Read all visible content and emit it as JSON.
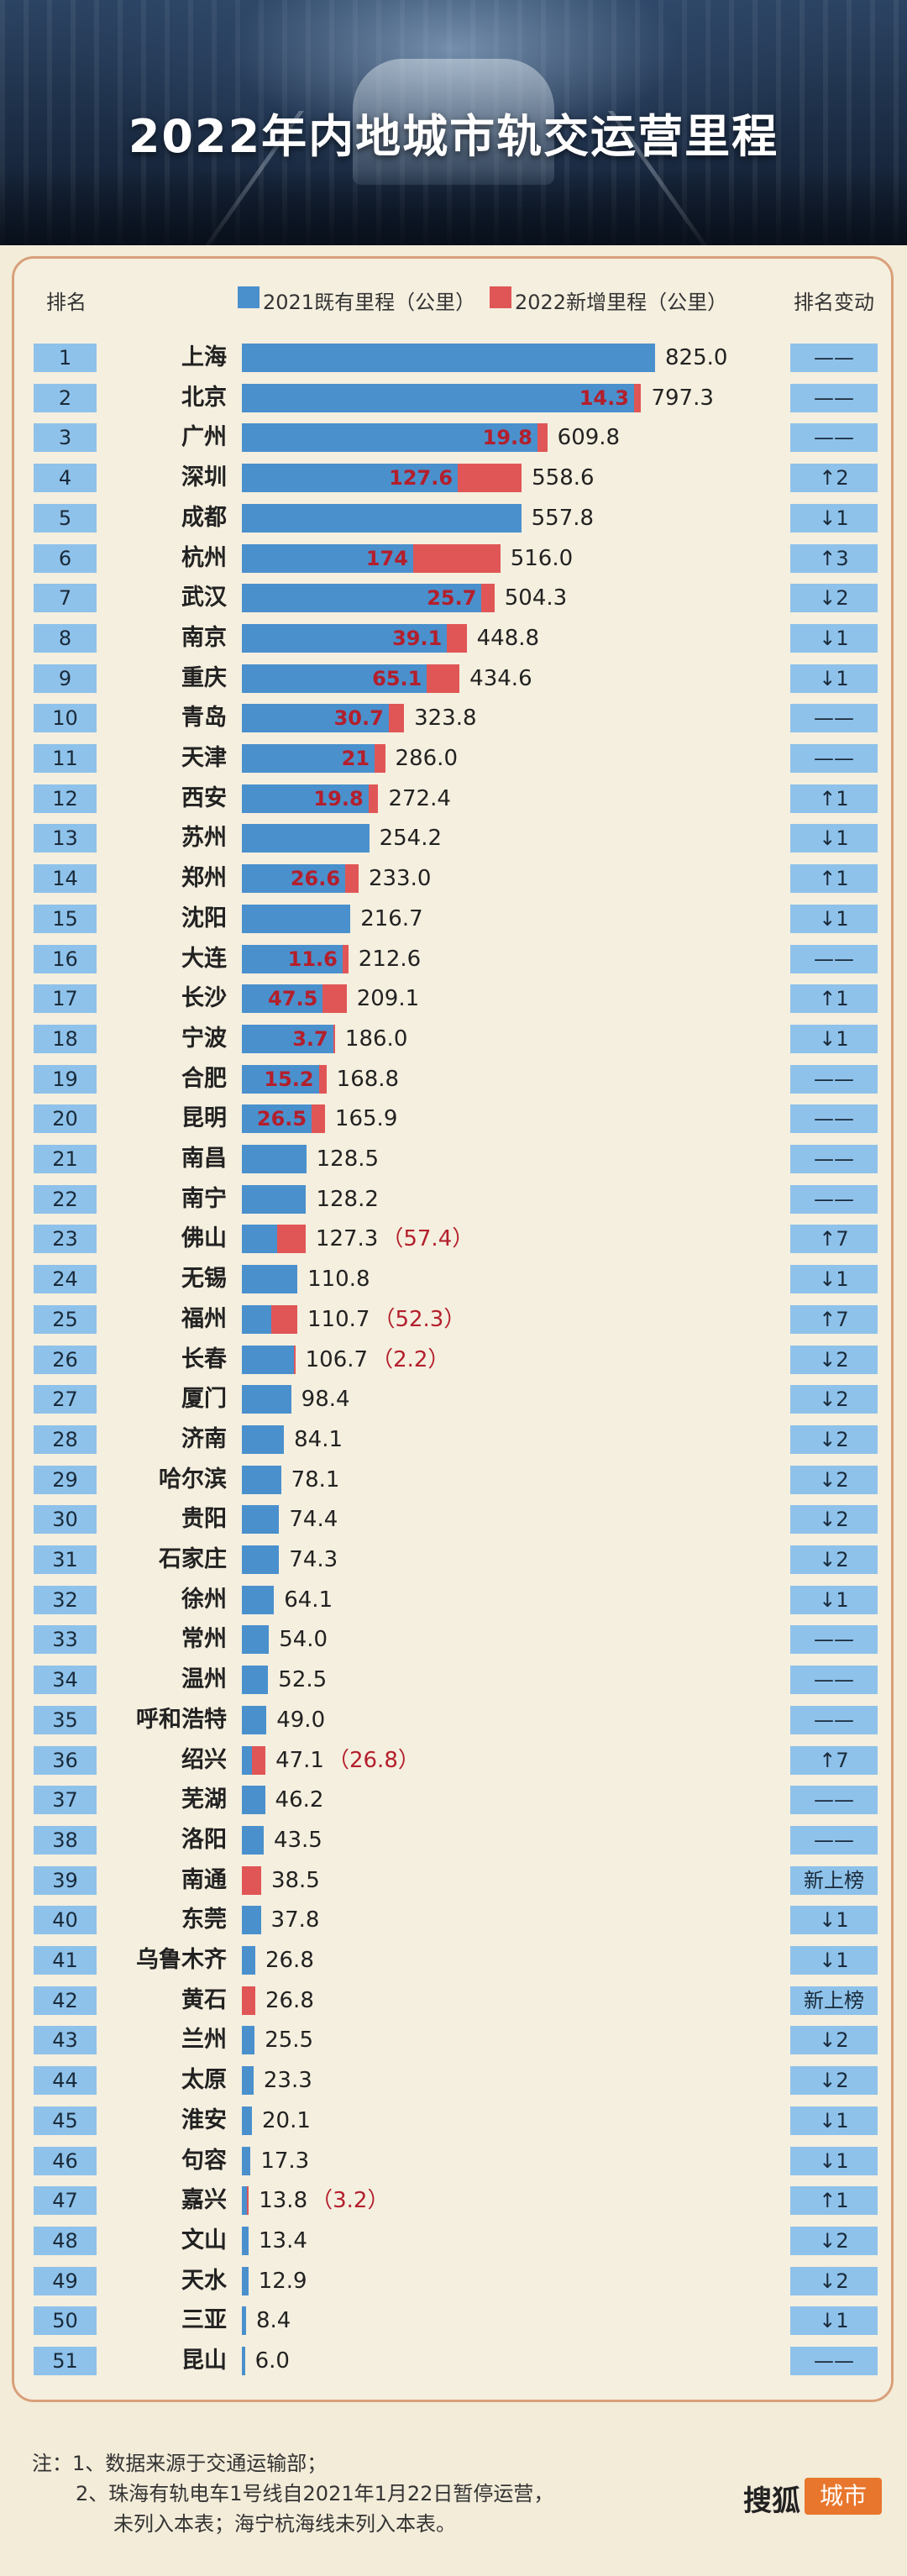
{
  "title": "2022年内地城市轨交运营里程",
  "colors": {
    "base": "#4a90cd",
    "increase": "#e05656",
    "rank_bg": "#8ec2ea",
    "label_red": "#b31f2c"
  },
  "header": {
    "rank_col": "排名",
    "legend_base": "2021既有里程（公里）",
    "legend_increase": "2022新增里程（公里）",
    "change_col": "排名变动"
  },
  "chart_data": {
    "type": "bar",
    "stacked": true,
    "orientation": "horizontal",
    "series": [
      {
        "name": "2021既有里程（公里）",
        "color": "#4a90cd"
      },
      {
        "name": "2022新增里程（公里）",
        "color": "#e05656"
      }
    ],
    "rows": [
      {
        "rank": "1",
        "city": "上海",
        "total": "825.0",
        "increase": null,
        "change": "——"
      },
      {
        "rank": "2",
        "city": "北京",
        "total": "797.3",
        "increase": "14.3",
        "change": "——"
      },
      {
        "rank": "3",
        "city": "广州",
        "total": "609.8",
        "increase": "19.8",
        "change": "——"
      },
      {
        "rank": "4",
        "city": "深圳",
        "total": "558.6",
        "increase": "127.6",
        "change": "↑2"
      },
      {
        "rank": "5",
        "city": "成都",
        "total": "557.8",
        "increase": null,
        "change": "↓1"
      },
      {
        "rank": "6",
        "city": "杭州",
        "total": "516.0",
        "increase": "174",
        "change": "↑3"
      },
      {
        "rank": "7",
        "city": "武汉",
        "total": "504.3",
        "increase": "25.7",
        "change": "↓2"
      },
      {
        "rank": "8",
        "city": "南京",
        "total": "448.8",
        "increase": "39.1",
        "change": "↓1"
      },
      {
        "rank": "9",
        "city": "重庆",
        "total": "434.6",
        "increase": "65.1",
        "change": "↓1"
      },
      {
        "rank": "10",
        "city": "青岛",
        "total": "323.8",
        "increase": "30.7",
        "change": "——"
      },
      {
        "rank": "11",
        "city": "天津",
        "total": "286.0",
        "increase": "21",
        "change": "——"
      },
      {
        "rank": "12",
        "city": "西安",
        "total": "272.4",
        "increase": "19.8",
        "change": "↑1"
      },
      {
        "rank": "13",
        "city": "苏州",
        "total": "254.2",
        "increase": null,
        "change": "↓1"
      },
      {
        "rank": "14",
        "city": "郑州",
        "total": "233.0",
        "increase": "26.6",
        "change": "↑1"
      },
      {
        "rank": "15",
        "city": "沈阳",
        "total": "216.7",
        "increase": null,
        "change": "↓1"
      },
      {
        "rank": "16",
        "city": "大连",
        "total": "212.6",
        "increase": "11.6",
        "change": "——"
      },
      {
        "rank": "17",
        "city": "长沙",
        "total": "209.1",
        "increase": "47.5",
        "change": "↑1"
      },
      {
        "rank": "18",
        "city": "宁波",
        "total": "186.0",
        "increase": "3.7",
        "change": "↓1"
      },
      {
        "rank": "19",
        "city": "合肥",
        "total": "168.8",
        "increase": "15.2",
        "change": "——"
      },
      {
        "rank": "20",
        "city": "昆明",
        "total": "165.9",
        "increase": "26.5",
        "change": "——"
      },
      {
        "rank": "21",
        "city": "南昌",
        "total": "128.5",
        "increase": null,
        "change": "——"
      },
      {
        "rank": "22",
        "city": "南宁",
        "total": "128.2",
        "increase": null,
        "change": "——"
      },
      {
        "rank": "23",
        "city": "佛山",
        "total": "127.3",
        "increase": "57.4",
        "paren": "（57.4）",
        "change": "↑7"
      },
      {
        "rank": "24",
        "city": "无锡",
        "total": "110.8",
        "increase": null,
        "change": "↓1"
      },
      {
        "rank": "25",
        "city": "福州",
        "total": "110.7",
        "increase": "52.3",
        "paren": "（52.3）",
        "change": "↑7"
      },
      {
        "rank": "26",
        "city": "长春",
        "total": "106.7",
        "increase": "2.2",
        "paren": "（2.2）",
        "change": "↓2"
      },
      {
        "rank": "27",
        "city": "厦门",
        "total": "98.4",
        "increase": null,
        "change": "↓2"
      },
      {
        "rank": "28",
        "city": "济南",
        "total": "84.1",
        "increase": null,
        "change": "↓2"
      },
      {
        "rank": "29",
        "city": "哈尔滨",
        "total": "78.1",
        "increase": null,
        "change": "↓2"
      },
      {
        "rank": "30",
        "city": "贵阳",
        "total": "74.4",
        "increase": null,
        "change": "↓2"
      },
      {
        "rank": "31",
        "city": "石家庄",
        "total": "74.3",
        "increase": null,
        "change": "↓2"
      },
      {
        "rank": "32",
        "city": "徐州",
        "total": "64.1",
        "increase": null,
        "change": "↓1"
      },
      {
        "rank": "33",
        "city": "常州",
        "total": "54.0",
        "increase": null,
        "change": "——"
      },
      {
        "rank": "34",
        "city": "温州",
        "total": "52.5",
        "increase": null,
        "change": "——"
      },
      {
        "rank": "35",
        "city": "呼和浩特",
        "total": "49.0",
        "increase": null,
        "change": "——"
      },
      {
        "rank": "36",
        "city": "绍兴",
        "total": "47.1",
        "increase": "26.8",
        "paren": "（26.8）",
        "change": "↑7"
      },
      {
        "rank": "37",
        "city": "芜湖",
        "total": "46.2",
        "increase": null,
        "change": "——"
      },
      {
        "rank": "38",
        "city": "洛阳",
        "total": "43.5",
        "increase": null,
        "change": "——"
      },
      {
        "rank": "39",
        "city": "南通",
        "total": "38.5",
        "increase": "38.5",
        "change": "新上榜"
      },
      {
        "rank": "40",
        "city": "东莞",
        "total": "37.8",
        "increase": null,
        "change": "↓1"
      },
      {
        "rank": "41",
        "city": "乌鲁木齐",
        "total": "26.8",
        "increase": null,
        "change": "↓1"
      },
      {
        "rank": "42",
        "city": "黄石",
        "total": "26.8",
        "increase": "26.8",
        "change": "新上榜"
      },
      {
        "rank": "43",
        "city": "兰州",
        "total": "25.5",
        "increase": null,
        "change": "↓2"
      },
      {
        "rank": "44",
        "city": "太原",
        "total": "23.3",
        "increase": null,
        "change": "↓2"
      },
      {
        "rank": "45",
        "city": "淮安",
        "total": "20.1",
        "increase": null,
        "change": "↓1"
      },
      {
        "rank": "46",
        "city": "句容",
        "total": "17.3",
        "increase": null,
        "change": "↓1"
      },
      {
        "rank": "47",
        "city": "嘉兴",
        "total": "13.8",
        "increase": "3.2",
        "paren": "（3.2）",
        "change": "↑1"
      },
      {
        "rank": "48",
        "city": "文山",
        "total": "13.4",
        "increase": null,
        "change": "↓2"
      },
      {
        "rank": "49",
        "city": "天水",
        "total": "12.9",
        "increase": null,
        "change": "↓2"
      },
      {
        "rank": "50",
        "city": "三亚",
        "total": "8.4",
        "increase": null,
        "change": "↓1"
      },
      {
        "rank": "51",
        "city": "昆山",
        "total": "6.0",
        "increase": null,
        "change": "——"
      }
    ]
  },
  "notes": {
    "line1": "注：1、数据来源于交通运输部；",
    "line2": "2、珠海有轨电车1号线自2021年1月22日暂停运营，",
    "line3": "未列入本表；海宁杭海线未列入本表。"
  },
  "logo": {
    "brand": "搜狐",
    "tag": "城市"
  }
}
